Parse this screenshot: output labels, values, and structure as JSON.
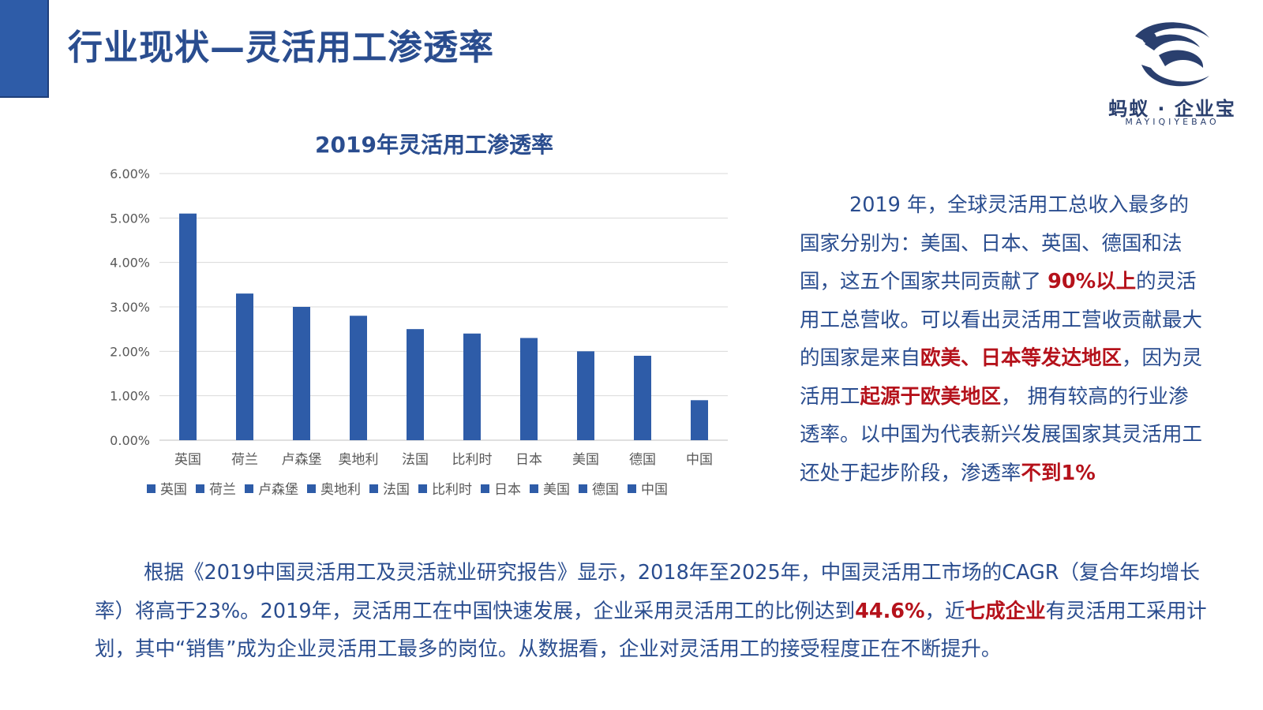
{
  "slide": {
    "title": "行业现状—灵活用工渗透率"
  },
  "logo": {
    "name": "蚂蚁 · 企业宝",
    "subtitle": "MAYIQIYEBAO"
  },
  "colors": {
    "accent": "#2e5ca8",
    "title": "#2a4d8f",
    "bar": "#2e5ca8",
    "highlight": "#b5121b"
  },
  "chart_data": {
    "type": "bar",
    "title": "2019年灵活用工渗透率",
    "categories": [
      "英国",
      "荷兰",
      "卢森堡",
      "奥地利",
      "法国",
      "比利时",
      "日本",
      "美国",
      "德国",
      "中国"
    ],
    "values": [
      5.1,
      3.3,
      3.0,
      2.8,
      2.5,
      2.4,
      2.3,
      2.0,
      1.9,
      0.9
    ],
    "value_unit": "%",
    "ylim": [
      0,
      6
    ],
    "yticks": [
      "0.00%",
      "1.00%",
      "2.00%",
      "3.00%",
      "4.00%",
      "5.00%",
      "6.00%"
    ],
    "grid": true,
    "legend_position": "bottom",
    "legend": [
      "英国",
      "荷兰",
      "卢森堡",
      "奥地利",
      "法国",
      "比利时",
      "日本",
      "美国",
      "德国",
      "中国"
    ],
    "xlabel": "",
    "ylabel": ""
  },
  "right_paragraph": {
    "p1": "2019 年，全球灵活用工总收入最多的国家分别为：美国、日本、英国、德国和法国，这五个国家共同贡献了 ",
    "h1": "90%以上",
    "p2": "的灵活用工总营收。可以看出灵活用工营收贡献最大的国家是来自",
    "h2": "欧美、日本等发达地区",
    "p3": "，因为灵活用工",
    "h3": "起源于欧美地区",
    "p4": "， 拥有较高的行业渗透率。以中国为代表新兴发展国家其灵活用工还处于起步阶段，渗透率",
    "h4": "不到1%"
  },
  "bottom_paragraph": {
    "p1": "根据《2019中国灵活用工及灵活就业研究报告》显示，2018年至2025年，中国灵活用工市场的CAGR（复合年均增长率）将高于23%。2019年，灵活用工在中国快速发展，企业采用灵活用工的比例达到",
    "h1": "44.6%",
    "p2": "，近",
    "h2": "七成企业",
    "p3": "有灵活用工采用计划，其中“销售”成为企业灵活用工最多的岗位。从数据看，企业对灵活用工的接受程度正在不断提升。"
  }
}
